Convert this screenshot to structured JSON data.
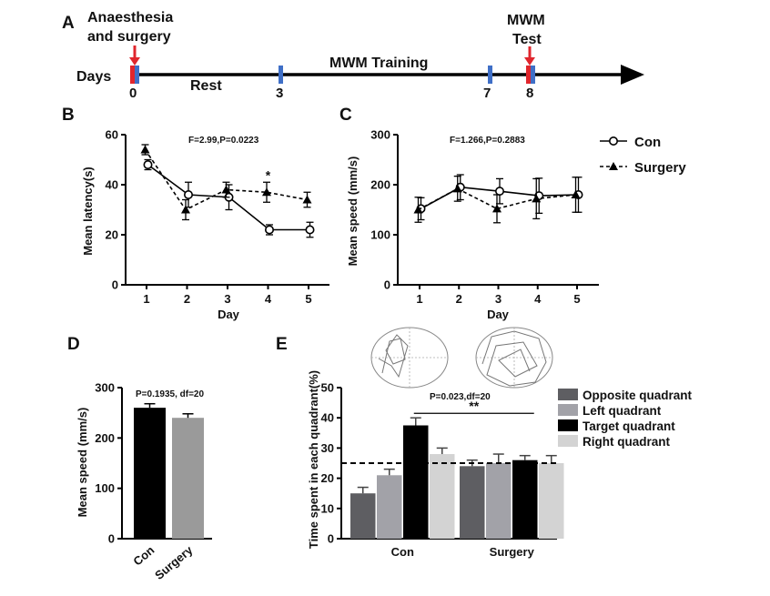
{
  "figure": {
    "timeline": {
      "panel_label": "A",
      "row_label": "Days",
      "event_left": [
        "Anaesthesia",
        "and surgery"
      ],
      "event_right": [
        "MWM",
        "Test"
      ],
      "rest_label": "Rest",
      "training_label": "MWM Training",
      "day_ticks": [
        "0",
        "3",
        "7",
        "8"
      ]
    },
    "legend_bc": {
      "con": "Con",
      "surgery": "Surgery"
    },
    "legend_e": [
      "Opposite quadrant",
      "Left quadrant",
      "Target quadrant",
      "Right quadrant"
    ]
  },
  "chart_data": [
    {
      "panel": "B",
      "type": "line",
      "stat_text": "F=2.99,P=0.0223",
      "xlabel": "Day",
      "ylabel": "Mean latency(s)",
      "x": [
        1,
        2,
        3,
        4,
        5
      ],
      "ylim": [
        0,
        60
      ],
      "yticks": [
        0,
        20,
        40,
        60
      ],
      "annotation": "*",
      "series": [
        {
          "name": "Con",
          "values": [
            48,
            36,
            35,
            22,
            22
          ],
          "errors": [
            2,
            5,
            5,
            2,
            3
          ]
        },
        {
          "name": "Surgery",
          "values": [
            54,
            30,
            38,
            37,
            34
          ],
          "errors": [
            2,
            4,
            3,
            4,
            3
          ]
        }
      ]
    },
    {
      "panel": "C",
      "type": "line",
      "stat_text": "F=1.266,P=0.2883",
      "xlabel": "Day",
      "ylabel": "Mean speed (mm/s)",
      "x": [
        1,
        2,
        3,
        4,
        5
      ],
      "ylim": [
        0,
        300
      ],
      "yticks": [
        0,
        100,
        200,
        300
      ],
      "series": [
        {
          "name": "Con",
          "values": [
            152,
            195,
            187,
            178,
            180
          ],
          "errors": [
            22,
            25,
            25,
            35,
            35
          ]
        },
        {
          "name": "Surgery",
          "values": [
            150,
            192,
            152,
            172,
            180
          ],
          "errors": [
            25,
            25,
            28,
            40,
            35
          ]
        }
      ]
    },
    {
      "panel": "D",
      "type": "bar",
      "stat_text": "P=0.1935, df=20",
      "ylabel": "Mean speed (mm/s)",
      "categories": [
        "Con",
        "Surgery"
      ],
      "values": [
        260,
        240
      ],
      "errors": [
        8,
        8
      ],
      "colors": [
        "#000000",
        "#9a9a9a"
      ],
      "ylim": [
        0,
        300
      ],
      "yticks": [
        0,
        100,
        200,
        300
      ]
    },
    {
      "panel": "E",
      "type": "bar",
      "stat_text": "P=0.023,df=20",
      "significance": "**",
      "ylabel": "Time spent in each quadrant(%)",
      "categories": [
        "Con",
        "Surgery"
      ],
      "ylim": [
        0,
        50
      ],
      "yticks": [
        0,
        10,
        20,
        30,
        40,
        50
      ],
      "reference_line": 25,
      "series": [
        {
          "name": "Opposite quadrant",
          "color": "#5e5e62",
          "values": [
            15,
            24
          ],
          "errors": [
            2,
            2
          ]
        },
        {
          "name": "Left quadrant",
          "color": "#a2a2a8",
          "values": [
            21,
            25
          ],
          "errors": [
            2,
            3
          ]
        },
        {
          "name": "Target quadrant",
          "color": "#000000",
          "values": [
            37.5,
            26
          ],
          "errors": [
            2.5,
            1.5
          ]
        },
        {
          "name": "Right quadrant",
          "color": "#d3d3d3",
          "values": [
            28,
            25
          ],
          "errors": [
            2,
            2.5
          ]
        }
      ]
    }
  ]
}
